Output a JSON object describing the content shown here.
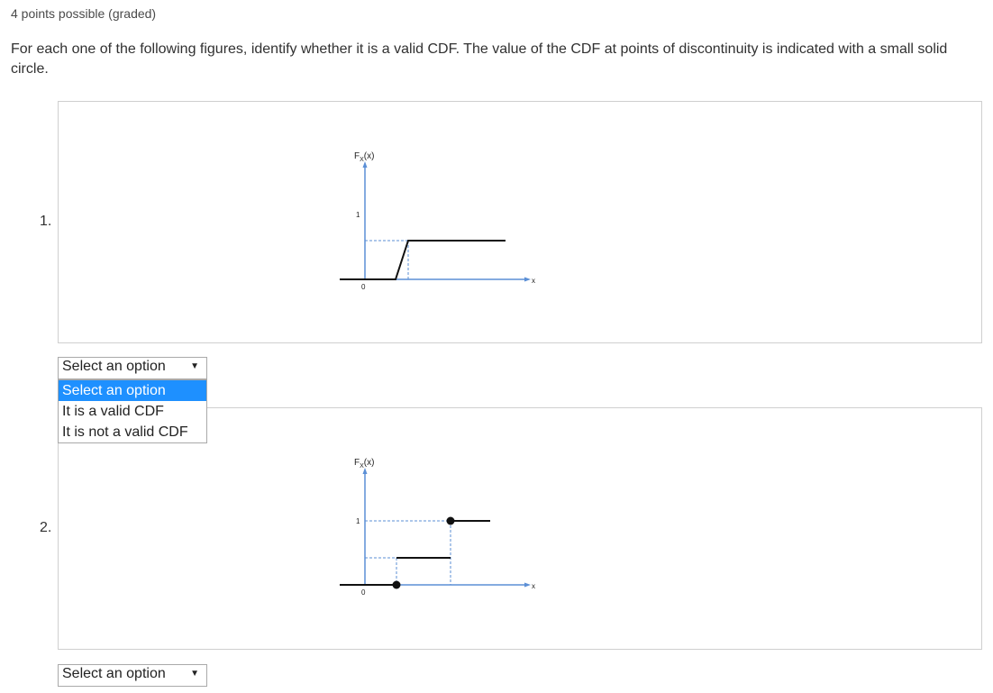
{
  "header": {
    "points": "4 points possible (graded)"
  },
  "prompt": "For each one of the following figures, identify whether it is a valid CDF. The value of the CDF at points of discontinuity is indicated with a small solid circle.",
  "questions": [
    {
      "number": "1.",
      "figure": {
        "y_label_main": "F",
        "y_label_sub": "X",
        "y_label_tail": "(x)",
        "one_label": "1",
        "zero_label": "0",
        "x_label": "x"
      },
      "select": {
        "selected": "Select an option"
      }
    },
    {
      "number": "2.",
      "figure": {
        "y_label_main": "F",
        "y_label_sub": "X",
        "y_label_tail": "(x)",
        "one_label": "1",
        "zero_label": "0",
        "x_label": "x"
      },
      "select": {
        "selected": "Select an option"
      }
    }
  ],
  "dropdown": {
    "options": [
      "Select an option",
      "It is a valid CDF",
      "It is not a valid CDF"
    ],
    "highlighted_index": 0
  },
  "colors": {
    "axis": "#5b8fd6",
    "curve": "#111111",
    "guide": "#5b8fd6",
    "highlight": "#1e90ff"
  }
}
